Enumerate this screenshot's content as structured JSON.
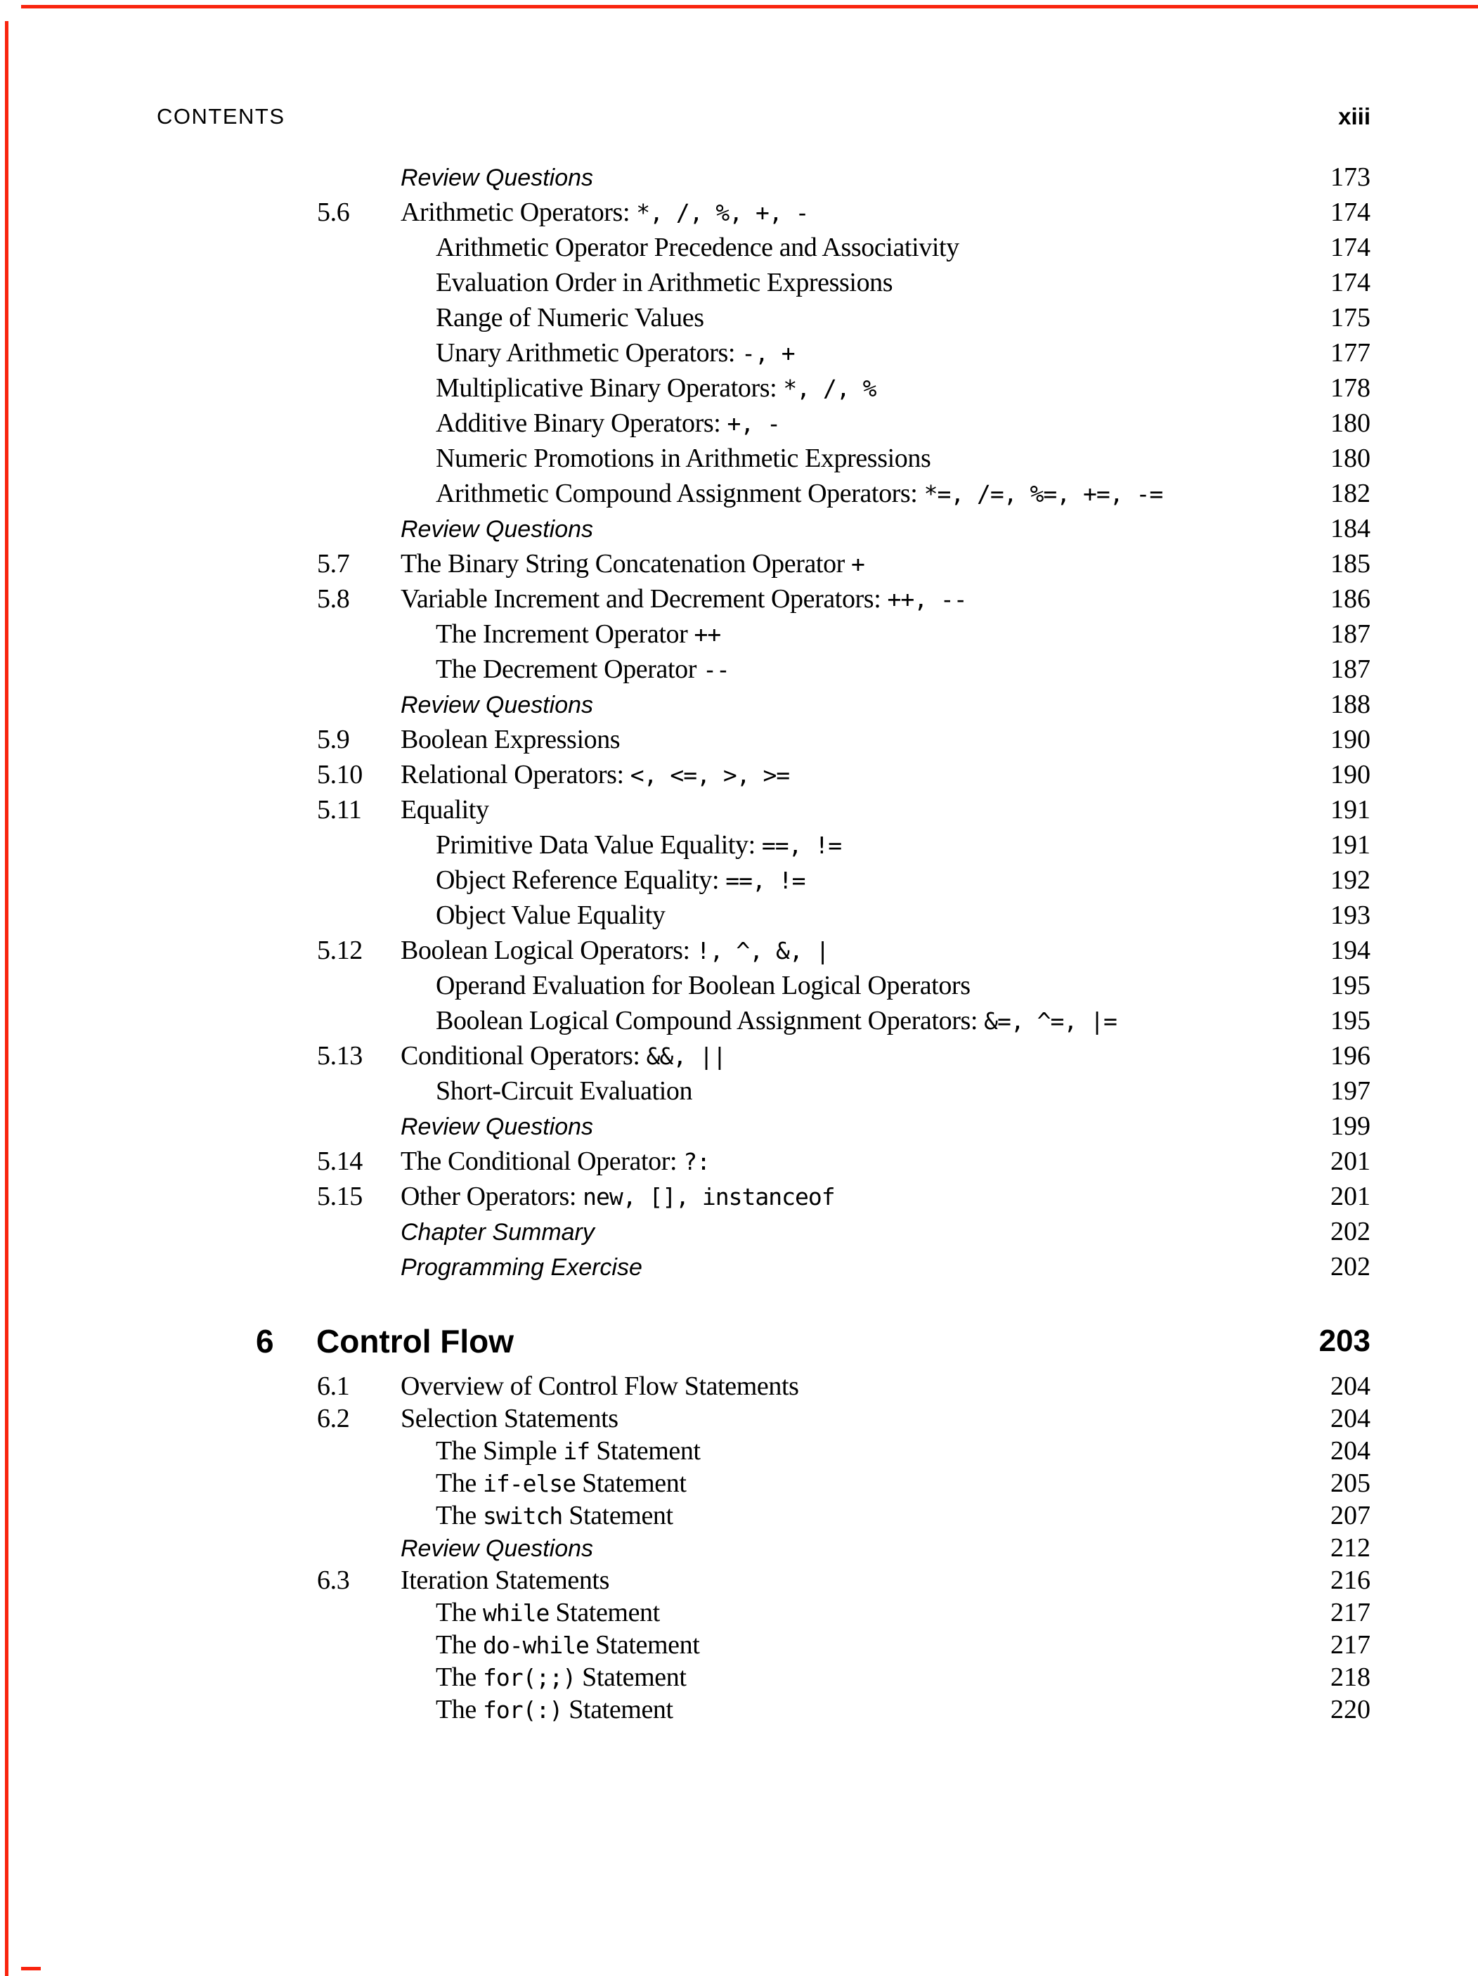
{
  "page": {
    "background": "#ffffff",
    "text_color": "#000000",
    "crop_mark_color": "#f9240e",
    "header": {
      "left": "CONTENTS",
      "right": "xiii"
    }
  },
  "toc": {
    "section_rows": [
      {
        "num": "",
        "level": "meta",
        "parts": [
          [
            "i",
            "Review Questions"
          ]
        ],
        "page": "173"
      },
      {
        "num": "5.6",
        "level": "section",
        "parts": [
          [
            "s",
            "Arithmetic Operators: "
          ],
          [
            "m",
            "*, /, %, +, -"
          ]
        ],
        "page": "174"
      },
      {
        "num": "",
        "level": "sub",
        "parts": [
          [
            "s",
            "Arithmetic Operator Precedence and Associativity"
          ]
        ],
        "page": "174"
      },
      {
        "num": "",
        "level": "sub",
        "parts": [
          [
            "s",
            "Evaluation Order in Arithmetic Expressions"
          ]
        ],
        "page": "174"
      },
      {
        "num": "",
        "level": "sub",
        "parts": [
          [
            "s",
            "Range of Numeric Values"
          ]
        ],
        "page": "175"
      },
      {
        "num": "",
        "level": "sub",
        "parts": [
          [
            "s",
            "Unary Arithmetic Operators: "
          ],
          [
            "m",
            "-, +"
          ]
        ],
        "page": "177"
      },
      {
        "num": "",
        "level": "sub",
        "parts": [
          [
            "s",
            "Multiplicative Binary Operators: "
          ],
          [
            "m",
            "*, /, %"
          ]
        ],
        "page": "178"
      },
      {
        "num": "",
        "level": "sub",
        "parts": [
          [
            "s",
            "Additive Binary Operators: "
          ],
          [
            "m",
            "+, -"
          ]
        ],
        "page": "180"
      },
      {
        "num": "",
        "level": "sub",
        "parts": [
          [
            "s",
            "Numeric Promotions in Arithmetic Expressions"
          ]
        ],
        "page": "180"
      },
      {
        "num": "",
        "level": "sub",
        "parts": [
          [
            "s",
            "Arithmetic Compound Assignment Operators: "
          ],
          [
            "m",
            "*=, /=, %=, +=, -="
          ]
        ],
        "page": "182"
      },
      {
        "num": "",
        "level": "meta",
        "parts": [
          [
            "i",
            "Review Questions"
          ]
        ],
        "page": "184"
      },
      {
        "num": "5.7",
        "level": "section",
        "parts": [
          [
            "s",
            "The Binary String Concatenation Operator "
          ],
          [
            "m",
            "+"
          ]
        ],
        "page": "185"
      },
      {
        "num": "5.8",
        "level": "section",
        "parts": [
          [
            "s",
            "Variable Increment and Decrement Operators: "
          ],
          [
            "m",
            "++, --"
          ]
        ],
        "page": "186"
      },
      {
        "num": "",
        "level": "sub",
        "parts": [
          [
            "s",
            "The Increment Operator "
          ],
          [
            "m",
            "++"
          ]
        ],
        "page": "187"
      },
      {
        "num": "",
        "level": "sub",
        "parts": [
          [
            "s",
            "The Decrement Operator "
          ],
          [
            "m",
            "--"
          ]
        ],
        "page": "187"
      },
      {
        "num": "",
        "level": "meta",
        "parts": [
          [
            "i",
            "Review Questions"
          ]
        ],
        "page": "188"
      },
      {
        "num": "5.9",
        "level": "section",
        "parts": [
          [
            "s",
            "Boolean Expressions"
          ]
        ],
        "page": "190"
      },
      {
        "num": "5.10",
        "level": "section",
        "parts": [
          [
            "s",
            "Relational Operators: "
          ],
          [
            "m",
            "<, <=, >, >="
          ]
        ],
        "page": "190"
      },
      {
        "num": "5.11",
        "level": "section",
        "parts": [
          [
            "s",
            "Equality"
          ]
        ],
        "page": "191"
      },
      {
        "num": "",
        "level": "sub",
        "parts": [
          [
            "s",
            "Primitive Data Value Equality: "
          ],
          [
            "m",
            "==, !="
          ]
        ],
        "page": "191"
      },
      {
        "num": "",
        "level": "sub",
        "parts": [
          [
            "s",
            "Object Reference Equality: "
          ],
          [
            "m",
            "==, !="
          ]
        ],
        "page": "192"
      },
      {
        "num": "",
        "level": "sub",
        "parts": [
          [
            "s",
            "Object Value Equality"
          ]
        ],
        "page": "193"
      },
      {
        "num": "5.12",
        "level": "section",
        "parts": [
          [
            "s",
            "Boolean Logical Operators: "
          ],
          [
            "m",
            "!, ^, &, |"
          ]
        ],
        "page": "194"
      },
      {
        "num": "",
        "level": "sub",
        "parts": [
          [
            "s",
            "Operand Evaluation for Boolean Logical Operators"
          ]
        ],
        "page": "195"
      },
      {
        "num": "",
        "level": "sub",
        "parts": [
          [
            "s",
            "Boolean Logical Compound Assignment Operators: "
          ],
          [
            "m",
            "&=, ^=, |="
          ]
        ],
        "page": "195"
      },
      {
        "num": "5.13",
        "level": "section",
        "parts": [
          [
            "s",
            "Conditional Operators: "
          ],
          [
            "m",
            "&&, ||"
          ]
        ],
        "page": "196"
      },
      {
        "num": "",
        "level": "sub",
        "parts": [
          [
            "s",
            "Short-Circuit Evaluation"
          ]
        ],
        "page": "197"
      },
      {
        "num": "",
        "level": "meta",
        "parts": [
          [
            "i",
            "Review Questions"
          ]
        ],
        "page": "199"
      },
      {
        "num": "5.14",
        "level": "section",
        "parts": [
          [
            "s",
            "The Conditional Operator: "
          ],
          [
            "m",
            "?:"
          ]
        ],
        "page": "201"
      },
      {
        "num": "5.15",
        "level": "section",
        "parts": [
          [
            "s",
            "Other Operators: "
          ],
          [
            "m",
            "new, [], instanceof"
          ]
        ],
        "page": "201"
      },
      {
        "num": "",
        "level": "meta",
        "parts": [
          [
            "i",
            "Chapter Summary"
          ]
        ],
        "page": "202"
      },
      {
        "num": "",
        "level": "meta",
        "parts": [
          [
            "i",
            "Programming Exercise"
          ]
        ],
        "page": "202"
      }
    ],
    "chapter_heading": {
      "number": "6",
      "title": "Control Flow",
      "page": "203"
    },
    "chapter_rows": [
      {
        "num": "6.1",
        "level": "section",
        "parts": [
          [
            "s",
            "Overview of Control Flow Statements"
          ]
        ],
        "page": "204"
      },
      {
        "num": "6.2",
        "level": "section",
        "parts": [
          [
            "s",
            "Selection Statements"
          ]
        ],
        "page": "204"
      },
      {
        "num": "",
        "level": "sub",
        "parts": [
          [
            "s",
            "The Simple "
          ],
          [
            "m",
            "if"
          ],
          [
            "s",
            " Statement"
          ]
        ],
        "page": "204"
      },
      {
        "num": "",
        "level": "sub",
        "parts": [
          [
            "s",
            "The "
          ],
          [
            "m",
            "if-else"
          ],
          [
            "s",
            " Statement"
          ]
        ],
        "page": "205"
      },
      {
        "num": "",
        "level": "sub",
        "parts": [
          [
            "s",
            "The "
          ],
          [
            "m",
            "switch"
          ],
          [
            "s",
            " Statement"
          ]
        ],
        "page": "207"
      },
      {
        "num": "",
        "level": "meta",
        "parts": [
          [
            "i",
            "Review Questions"
          ]
        ],
        "page": "212"
      },
      {
        "num": "6.3",
        "level": "section",
        "parts": [
          [
            "s",
            "Iteration Statements"
          ]
        ],
        "page": "216"
      },
      {
        "num": "",
        "level": "sub",
        "parts": [
          [
            "s",
            "The "
          ],
          [
            "m",
            "while"
          ],
          [
            "s",
            " Statement"
          ]
        ],
        "page": "217"
      },
      {
        "num": "",
        "level": "sub",
        "parts": [
          [
            "s",
            "The "
          ],
          [
            "m",
            "do-while"
          ],
          [
            "s",
            " Statement"
          ]
        ],
        "page": "217"
      },
      {
        "num": "",
        "level": "sub",
        "parts": [
          [
            "s",
            "The "
          ],
          [
            "m",
            "for(;;)"
          ],
          [
            "s",
            " Statement"
          ]
        ],
        "page": "218"
      },
      {
        "num": "",
        "level": "sub",
        "parts": [
          [
            "s",
            "The "
          ],
          [
            "m",
            "for(:)"
          ],
          [
            "s",
            " Statement"
          ]
        ],
        "page": "220"
      }
    ]
  }
}
